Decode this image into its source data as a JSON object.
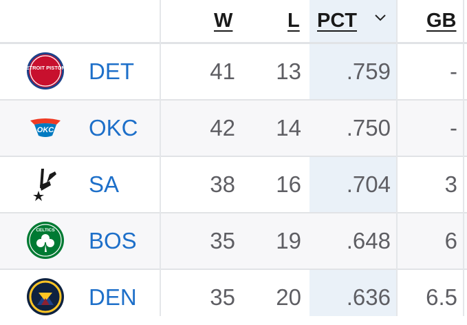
{
  "header": {
    "w": "W",
    "l": "L",
    "pct": "PCT",
    "gb": "GB"
  },
  "sort_icon": "chevron-down-icon",
  "colors": {
    "link": "#1d6fc9",
    "highlight": "#eaf1f8",
    "text": "#5e5e63"
  },
  "rows": [
    {
      "team": "DET",
      "w": "41",
      "l": "13",
      "pct": ".759",
      "gb": "-",
      "logo": "pistons-logo",
      "logo_text": "DETROIT PISTONS"
    },
    {
      "team": "OKC",
      "w": "42",
      "l": "14",
      "pct": ".750",
      "gb": "-",
      "logo": "thunder-logo",
      "logo_text": "OKC"
    },
    {
      "team": "SA",
      "w": "38",
      "l": "16",
      "pct": ".704",
      "gb": "3",
      "logo": "spurs-logo",
      "logo_text": ""
    },
    {
      "team": "BOS",
      "w": "35",
      "l": "19",
      "pct": ".648",
      "gb": "6",
      "logo": "celtics-logo",
      "logo_text": "CELTICS"
    },
    {
      "team": "DEN",
      "w": "35",
      "l": "20",
      "pct": ".636",
      "gb": "6.5",
      "logo": "nuggets-logo",
      "logo_text": ""
    }
  ]
}
